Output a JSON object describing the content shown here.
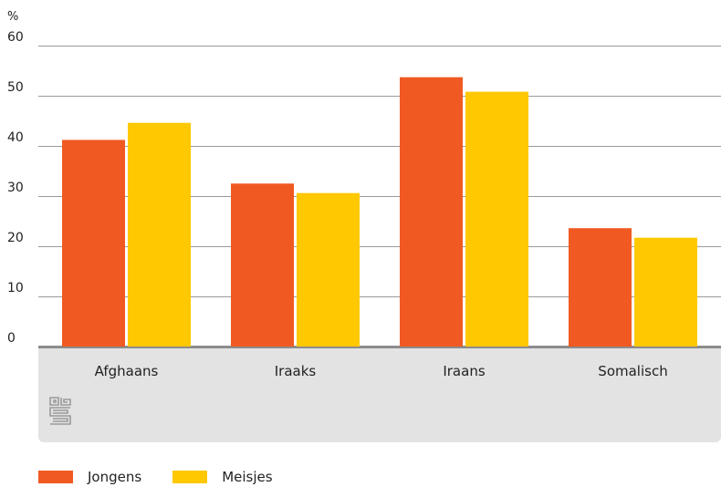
{
  "chart_data": {
    "type": "bar",
    "ylabel": "%",
    "ylim": [
      0,
      60
    ],
    "yticks": [
      0,
      10,
      20,
      30,
      40,
      50,
      60
    ],
    "grid": true,
    "categories": [
      "Afghaans",
      "Iraaks",
      "Iraans",
      "Somalisch"
    ],
    "series": [
      {
        "name": "Jongens",
        "color": "#F05A22",
        "values": [
          41.2,
          32.5,
          53.7,
          23.6
        ]
      },
      {
        "name": "Meisjes",
        "color": "#FFC800",
        "values": [
          44.6,
          30.6,
          50.8,
          21.7
        ]
      }
    ],
    "legend_position": "bottom-left",
    "logo_icon": "cbs-logo-icon"
  }
}
